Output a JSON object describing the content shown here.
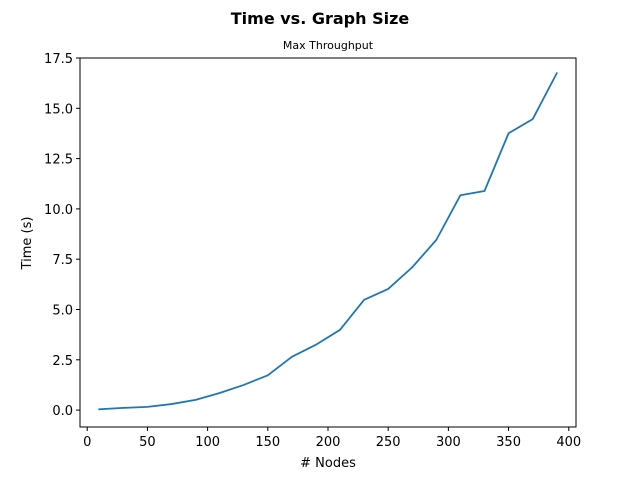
{
  "chart_data": {
    "type": "line",
    "title": "Time vs. Graph Size",
    "subtitle": "Max Throughput",
    "xlabel": "# Nodes",
    "ylabel": "Time (s)",
    "xlim": [
      -6,
      406
    ],
    "ylim": [
      -0.84,
      17.5
    ],
    "grid": false,
    "x_ticks": [
      0,
      50,
      100,
      150,
      200,
      250,
      300,
      350,
      400
    ],
    "x_tick_labels": [
      "0",
      "50",
      "100",
      "150",
      "200",
      "250",
      "300",
      "350",
      "400"
    ],
    "y_ticks": [
      0,
      2.5,
      5,
      7.5,
      10,
      12.5,
      15,
      17.5
    ],
    "y_tick_labels": [
      "0.0",
      "2.5",
      "5.0",
      "7.5",
      "10.0",
      "12.5",
      "15.0",
      "17.5"
    ],
    "series": [
      {
        "color": "#1f77b4",
        "x": [
          10,
          30,
          50,
          70,
          90,
          110,
          130,
          150,
          170,
          190,
          210,
          230,
          250,
          270,
          290,
          310,
          330,
          350,
          370,
          390
        ],
        "y": [
          0.04,
          0.11,
          0.16,
          0.3,
          0.51,
          0.85,
          1.25,
          1.73,
          2.65,
          3.25,
          3.99,
          5.48,
          6.02,
          7.1,
          8.46,
          10.68,
          10.89,
          13.76,
          14.46,
          16.74
        ]
      }
    ]
  }
}
